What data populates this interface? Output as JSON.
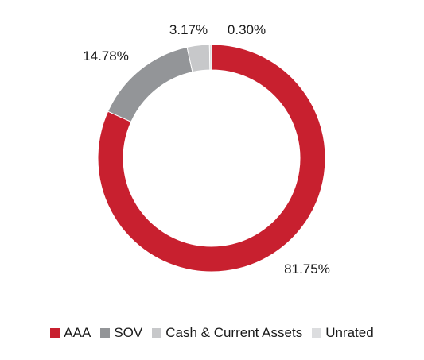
{
  "chart_data": {
    "type": "pie",
    "title": "",
    "style": "donut",
    "slices": [
      {
        "label": "AAA",
        "value": 81.75,
        "display": "81.75%",
        "color": "#c8202f"
      },
      {
        "label": "SOV",
        "value": 14.78,
        "display": "14.78%",
        "color": "#939598"
      },
      {
        "label": "Cash & Current Assets",
        "value": 3.17,
        "display": "3.17%",
        "color": "#c7c8ca"
      },
      {
        "label": "Unrated",
        "value": 0.3,
        "display": "0.30%",
        "color": "#dcdddf"
      }
    ],
    "legend_position": "bottom"
  }
}
